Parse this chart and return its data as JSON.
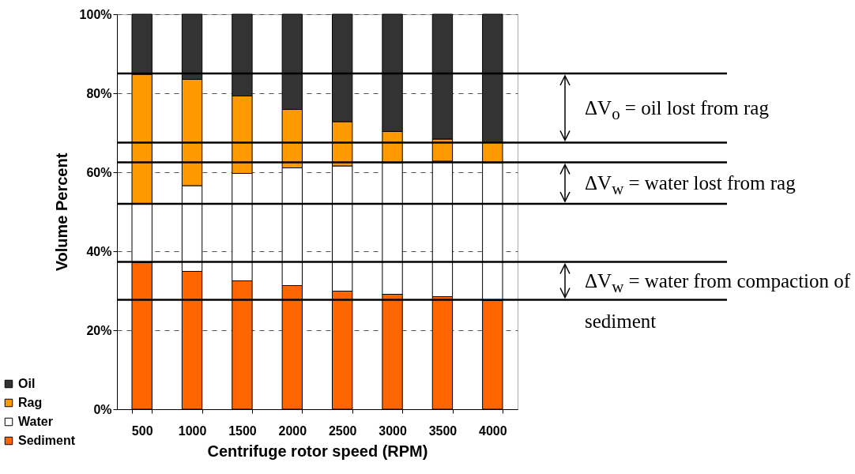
{
  "chart_data": {
    "type": "bar",
    "stacked": true,
    "xlabel": "Centrifuge rotor speed (RPM)",
    "ylabel": "Volume Percent",
    "categories": [
      "500",
      "1000",
      "1500",
      "2000",
      "2500",
      "3000",
      "3500",
      "4000"
    ],
    "series": [
      {
        "name": "Sediment",
        "color": "#ff6600",
        "values": [
          37.1,
          34.9,
          32.5,
          31.3,
          29.9,
          29.1,
          28.5,
          27.5
        ]
      },
      {
        "name": "Water",
        "color": "#ffffff",
        "values": [
          14.8,
          21.7,
          27.2,
          29.8,
          31.7,
          33.2,
          34.3,
          34.9
        ]
      },
      {
        "name": "Rag",
        "color": "#ff9900",
        "values": [
          32.9,
          26.9,
          19.6,
          14.8,
          11.2,
          8.0,
          5.6,
          5.1
        ]
      },
      {
        "name": "Oil",
        "color": "#333333",
        "values": [
          15.2,
          16.5,
          20.7,
          24.1,
          27.2,
          29.7,
          31.6,
          32.5
        ]
      }
    ],
    "ylim": [
      0,
      100
    ],
    "yticks": [
      {
        "value": 0,
        "label": "0%"
      },
      {
        "value": 20,
        "label": "20%"
      },
      {
        "value": 40,
        "label": "40%"
      },
      {
        "value": 60,
        "label": "60%"
      },
      {
        "value": 80,
        "label": "80%"
      },
      {
        "value": 100,
        "label": "100%"
      }
    ],
    "grid": "y",
    "legend": "bottom left",
    "ref_lines": [
      {
        "axis": "y",
        "value": 85
      },
      {
        "axis": "y",
        "value": 67.5
      },
      {
        "axis": "y",
        "value": 62.5
      },
      {
        "axis": "y",
        "value": 52
      },
      {
        "axis": "y",
        "value": 37.3
      },
      {
        "axis": "y",
        "value": 27.7
      }
    ],
    "annotations": [
      "ΔV$_{o}$ = oil lost from rag",
      "ΔV$_{w}$ = water lost from rag",
      "ΔV$_{w}$ = water from compaction of sediment"
    ]
  }
}
